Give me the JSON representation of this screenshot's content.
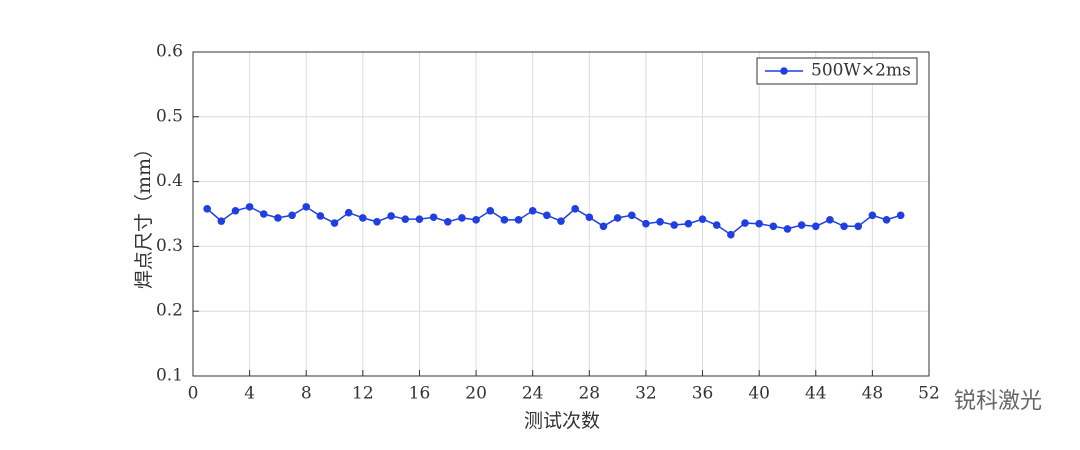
{
  "chart_data": {
    "type": "line",
    "x_label": "测试次数",
    "y_label": "焊点尺寸（mm）",
    "watermark": "锐科激光",
    "x": [
      1,
      2,
      3,
      4,
      5,
      6,
      7,
      8,
      9,
      10,
      11,
      12,
      13,
      14,
      15,
      16,
      17,
      18,
      19,
      20,
      21,
      22,
      23,
      24,
      25,
      26,
      27,
      28,
      29,
      30,
      31,
      32,
      33,
      34,
      35,
      36,
      37,
      38,
      39,
      40,
      41,
      42,
      43,
      44,
      45,
      46,
      47,
      48,
      49,
      50
    ],
    "series": [
      {
        "name": "500W×2ms",
        "color": "#1f3fe0",
        "values": [
          0.358,
          0.339,
          0.355,
          0.361,
          0.35,
          0.344,
          0.348,
          0.361,
          0.347,
          0.336,
          0.352,
          0.344,
          0.338,
          0.347,
          0.342,
          0.342,
          0.345,
          0.338,
          0.344,
          0.341,
          0.355,
          0.341,
          0.341,
          0.355,
          0.348,
          0.339,
          0.358,
          0.345,
          0.331,
          0.344,
          0.348,
          0.335,
          0.338,
          0.333,
          0.335,
          0.342,
          0.333,
          0.318,
          0.336,
          0.335,
          0.331,
          0.327,
          0.333,
          0.331,
          0.341,
          0.331,
          0.331,
          0.348,
          0.341,
          0.348
        ]
      }
    ],
    "xlim": [
      0,
      52
    ],
    "xticks": [
      0,
      4,
      8,
      12,
      16,
      20,
      24,
      28,
      32,
      36,
      40,
      44,
      48,
      52
    ],
    "ylim": [
      0.1,
      0.6
    ],
    "yticks": [
      0.1,
      0.2,
      0.3,
      0.4,
      0.5,
      0.6
    ],
    "grid": true,
    "legend": "upper right"
  }
}
